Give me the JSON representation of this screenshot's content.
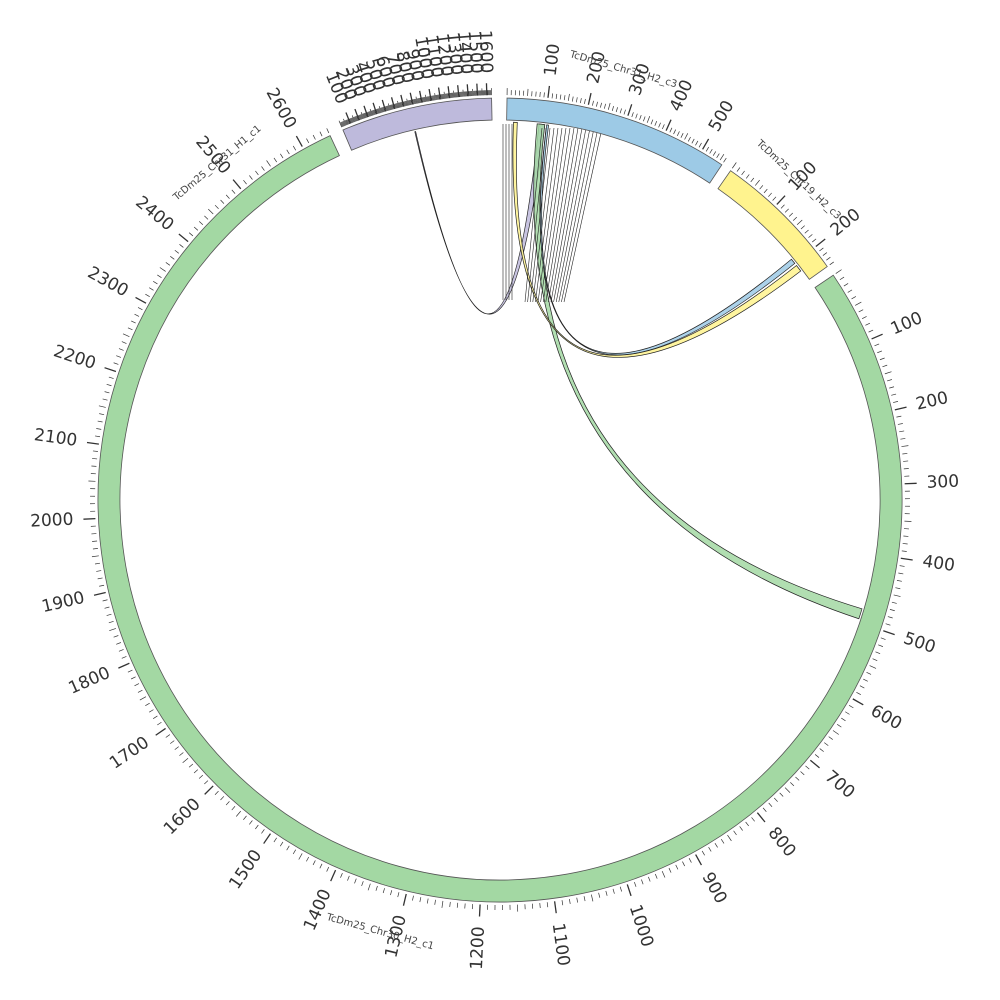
{
  "chromosomes": [
    {
      "id": "c31h2",
      "name": "TcDm25_Chr31_H2_c3",
      "length": 560,
      "color": "#9DCAE6",
      "major_ticks": [
        100,
        200,
        300,
        400,
        500
      ]
    },
    {
      "id": "c19h2",
      "name": "TcDm25_Chr19_H2_c3",
      "length": 240,
      "color": "#FFF38E",
      "major_ticks": [
        100,
        200
      ]
    },
    {
      "id": "c30h2",
      "name": "TcDm25_Chr30_H2_c1",
      "length": 2640,
      "color": "#A3D8A3",
      "major_ticks": [
        100,
        200,
        300,
        400,
        500,
        600,
        700,
        800,
        900,
        1000,
        1100,
        1200,
        1300,
        1400,
        1500,
        1600,
        1700,
        1800,
        1900,
        2000,
        2100,
        2200,
        2300,
        2400,
        2500,
        2600
      ]
    },
    {
      "id": "c31h1",
      "name": "TcDm25_Chr31_H1_c1",
      "length": 1650,
      "color": "#BEBADC",
      "major_ticks": [
        100,
        200,
        300,
        400,
        500,
        600,
        700,
        800,
        900,
        1000,
        1100,
        1200,
        1300,
        1400,
        1500,
        1600
      ]
    }
  ],
  "links": [
    {
      "from": "c31h2",
      "from_start": 85,
      "from_end": 100,
      "to": "c31h1",
      "to_start": 755,
      "to_end": 765,
      "color": "#BEBADC"
    },
    {
      "from": "c31h2",
      "from_start": 80,
      "from_end": 100,
      "to": "c30h2",
      "to_start": 480,
      "to_end": 495,
      "color": "#A3D8A3"
    },
    {
      "from": "c31h2",
      "from_start": 105,
      "from_end": 110,
      "to": "c19h2",
      "to_start": 190,
      "to_end": 200,
      "color": "#9DCAE6"
    },
    {
      "from": "c31h2",
      "from_start": 18,
      "from_end": 28,
      "to": "c19h2",
      "to_start": 205,
      "to_end": 218,
      "color": "#FFF38E"
    },
    {
      "from": "c31h2",
      "from_start": 0,
      "from_end": 10,
      "to": "c31h2",
      "to_start": 0,
      "to_end": 10,
      "color": "#ffffff"
    }
  ],
  "colors": {
    "ring_stroke": "#555555",
    "link_stroke": "#222222",
    "tick": "#333333"
  }
}
